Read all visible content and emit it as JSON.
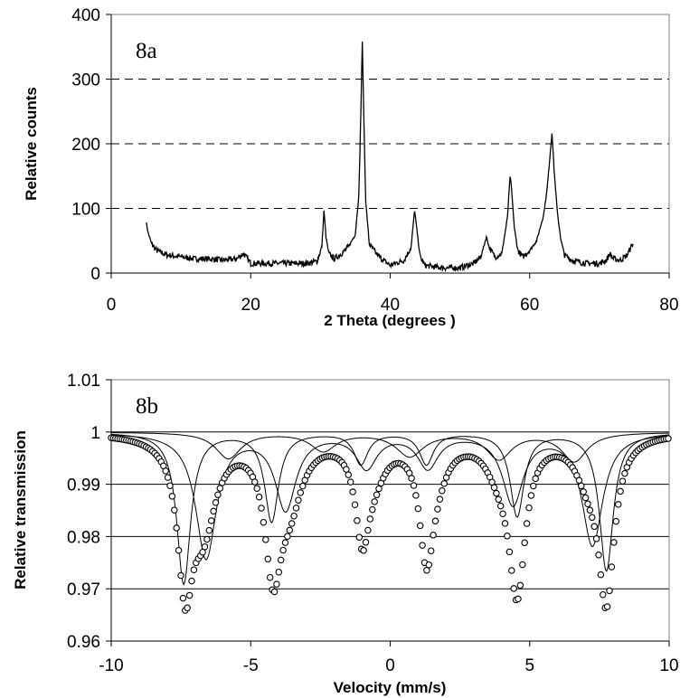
{
  "chart_data": [
    {
      "type": "line",
      "panel_label": "8a",
      "xlabel": "2 Theta  (degrees )",
      "ylabel": "Relative counts",
      "xlim": [
        0,
        80
      ],
      "ylim": [
        0,
        400
      ],
      "x_ticks": [
        "0",
        "20",
        "40",
        "60",
        "80"
      ],
      "y_ticks": [
        "0",
        "100",
        "200",
        "300",
        "400"
      ],
      "grid": "dashed horizontal at 100, 200, 300",
      "series": [
        {
          "x": [
            5.0,
            5.3,
            5.8,
            6.5,
            8,
            10,
            12,
            14,
            16,
            18,
            19,
            20,
            22,
            24,
            26,
            28,
            29.5,
            30.2,
            30.5,
            30.8,
            31.2,
            32,
            33,
            34,
            35,
            35.5,
            35.8,
            36.0,
            36.2,
            36.5,
            37,
            38,
            39,
            40,
            42,
            43.0,
            43.5,
            43.9,
            44.3,
            45,
            46,
            48,
            50,
            52,
            53,
            53.8,
            54.2,
            55,
            56,
            56.8,
            57.2,
            57.4,
            57.8,
            58.3,
            59,
            60,
            61,
            62,
            62.5,
            62.9,
            63.2,
            63.5,
            64,
            64.5,
            65,
            66,
            68,
            70,
            71.0,
            71.5,
            72,
            73,
            74,
            74.5,
            74.8
          ],
          "values": [
            80,
            62,
            45,
            35,
            28,
            25,
            22,
            22,
            20,
            22,
            30,
            15,
            15,
            15,
            15,
            15,
            18,
            40,
            97,
            55,
            30,
            22,
            30,
            40,
            60,
            120,
            250,
            357,
            250,
            110,
            45,
            30,
            20,
            12,
            20,
            40,
            97,
            60,
            25,
            12,
            10,
            8,
            8,
            15,
            25,
            56,
            40,
            25,
            30,
            85,
            150,
            130,
            70,
            35,
            25,
            35,
            50,
            90,
            130,
            180,
            218,
            160,
            90,
            50,
            28,
            20,
            15,
            15,
            20,
            30,
            22,
            20,
            28,
            40,
            45
          ]
        }
      ]
    },
    {
      "type": "scatter",
      "panel_label": "8b",
      "xlabel": "Velocity  (mm/s)",
      "ylabel": "Relative transmission",
      "xlim": [
        -10,
        10
      ],
      "ylim": [
        0.96,
        1.01
      ],
      "x_ticks": [
        "-10",
        "-5",
        "0",
        "5",
        "10"
      ],
      "y_ticks": [
        "0.96",
        "0.97",
        "0.98",
        "0.99",
        "1",
        "1.01"
      ],
      "grid": "solid horizontal at 0.97, 0.98, 0.99, 1",
      "series": [
        {
          "kind": "data-points",
          "lines": [
            {
              "pos": -7.35,
              "depth": 0.0265,
              "width": 0.32
            },
            {
              "pos": -6.7,
              "depth": 0.0165,
              "width": 0.55
            },
            {
              "pos": -4.2,
              "depth": 0.024,
              "width": 0.36
            },
            {
              "pos": -3.6,
              "depth": 0.011,
              "width": 0.55
            },
            {
              "pos": -1.0,
              "depth": 0.017,
              "width": 0.3
            },
            {
              "pos": -0.6,
              "depth": 0.006,
              "width": 0.55
            },
            {
              "pos": 1.3,
              "depth": 0.02,
              "width": 0.3
            },
            {
              "pos": 1.6,
              "depth": 0.006,
              "width": 0.55
            },
            {
              "pos": 4.55,
              "depth": 0.029,
              "width": 0.36
            },
            {
              "pos": 3.9,
              "depth": 0.005,
              "width": 0.55
            },
            {
              "pos": 7.75,
              "depth": 0.0305,
              "width": 0.34
            },
            {
              "pos": 7.1,
              "depth": 0.0065,
              "width": 0.55
            }
          ]
        },
        {
          "kind": "fit-subspectrum-A",
          "lines": [
            {
              "pos": -7.4,
              "depth": 0.029,
              "width": 0.3
            },
            {
              "pos": -4.25,
              "depth": 0.017,
              "width": 0.3
            },
            {
              "pos": -1.05,
              "depth": 0.006,
              "width": 0.3
            },
            {
              "pos": 1.3,
              "depth": 0.006,
              "width": 0.3
            },
            {
              "pos": 4.55,
              "depth": 0.016,
              "width": 0.3
            },
            {
              "pos": 7.75,
              "depth": 0.0265,
              "width": 0.3
            }
          ]
        },
        {
          "kind": "fit-subspectrum-B",
          "lines": [
            {
              "pos": -6.6,
              "depth": 0.024,
              "width": 0.45
            },
            {
              "pos": -3.75,
              "depth": 0.0145,
              "width": 0.45
            },
            {
              "pos": -0.85,
              "depth": 0.0065,
              "width": 0.45
            },
            {
              "pos": 1.35,
              "depth": 0.0065,
              "width": 0.45
            },
            {
              "pos": 4.4,
              "depth": 0.0135,
              "width": 0.45
            },
            {
              "pos": 7.25,
              "depth": 0.0215,
              "width": 0.45
            }
          ]
        },
        {
          "kind": "fit-subspectrum-C",
          "lines": [
            {
              "pos": -5.8,
              "depth": 0.005,
              "width": 0.55
            },
            {
              "pos": -2.4,
              "depth": 0.0035,
              "width": 0.55
            },
            {
              "pos": 0.7,
              "depth": 0.0045,
              "width": 0.6
            },
            {
              "pos": 3.9,
              "depth": 0.005,
              "width": 0.55
            },
            {
              "pos": 6.6,
              "depth": 0.0055,
              "width": 0.55
            }
          ]
        }
      ]
    }
  ]
}
